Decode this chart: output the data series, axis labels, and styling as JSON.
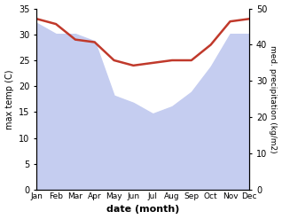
{
  "months": [
    "Jan",
    "Feb",
    "Mar",
    "Apr",
    "May",
    "Jun",
    "Jul",
    "Aug",
    "Sep",
    "Oct",
    "Nov",
    "Dec"
  ],
  "temp_max": [
    33,
    32,
    29,
    28.5,
    25,
    24,
    24.5,
    25,
    25,
    28,
    32.5,
    33
  ],
  "precip_raw": [
    46,
    43,
    43,
    41,
    26,
    24,
    21,
    23,
    27,
    34,
    43,
    43
  ],
  "temp_ylim": [
    0,
    35
  ],
  "precip_ylim": [
    0,
    50
  ],
  "temp_color": "#c0392b",
  "precip_fill_color": "#c5cdf0",
  "background_color": "#ffffff",
  "ylabel_left": "max temp (C)",
  "ylabel_right": "med. precipitation (kg/m2)",
  "xlabel": "date (month)",
  "temp_linewidth": 1.8
}
